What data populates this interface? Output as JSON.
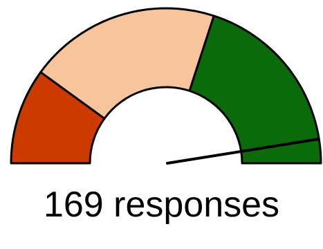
{
  "chart_data": {
    "type": "gauge",
    "bands": [
      {
        "from": 0.0,
        "to": 0.2,
        "color": "#cc3a00"
      },
      {
        "from": 0.2,
        "to": 0.6,
        "color": "#f7c49b"
      },
      {
        "from": 0.6,
        "to": 1.0,
        "color": "#0b6b0b"
      }
    ],
    "needle_value": 0.95,
    "needle_color": "#000000",
    "response_count": 169,
    "response_text": "169 responses"
  }
}
